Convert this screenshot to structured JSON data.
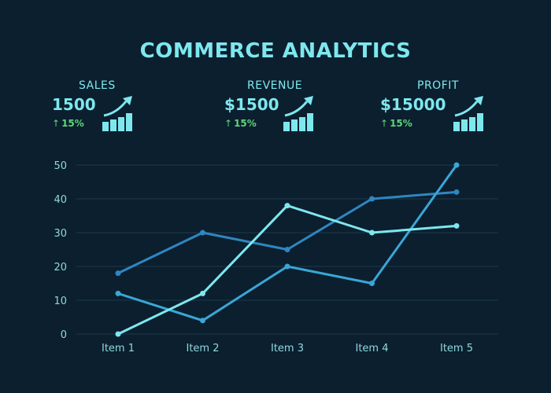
{
  "title": "COMMERCE ANALYTICS",
  "kpis": [
    {
      "label": "SALES",
      "value": "1500",
      "change": "15%",
      "icon": "growth-bar-chart-icon"
    },
    {
      "label": "REVENUE",
      "value": "$1500",
      "change": "15%",
      "icon": "growth-bar-chart-icon"
    },
    {
      "label": "PROFIT",
      "value": "$15000",
      "change": "15%",
      "icon": "growth-bar-chart-icon"
    }
  ],
  "colors": {
    "background": "#0b1f2e",
    "accent": "#7ee7ee",
    "positive": "#5dd67a",
    "grid": "#1e3a4c"
  },
  "chart_data": {
    "type": "line",
    "categories": [
      "Item 1",
      "Item 2",
      "Item 3",
      "Item 4",
      "Item 5"
    ],
    "series": [
      {
        "values": [
          18,
          30,
          25,
          40,
          42
        ],
        "color": "#2f86c0"
      },
      {
        "values": [
          12,
          4,
          20,
          15,
          50
        ],
        "color": "#3aa6d6"
      },
      {
        "values": [
          0,
          12,
          38,
          30,
          32
        ],
        "color": "#7ee7ee"
      }
    ],
    "ylim": [
      0,
      50
    ],
    "yticks": [
      0,
      10,
      20,
      30,
      40,
      50
    ],
    "grid": true,
    "legend": "none",
    "xlabel": "",
    "ylabel": ""
  }
}
